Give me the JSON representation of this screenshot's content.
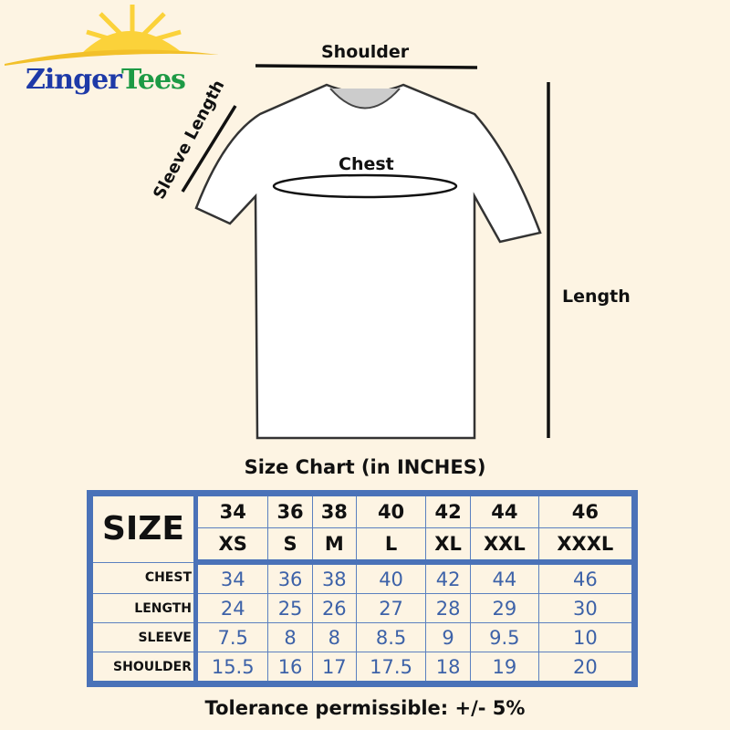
{
  "brand": {
    "name_part1": "Zinger",
    "name_part2": "Tees"
  },
  "diagram": {
    "shoulder": "Shoulder",
    "sleeve": "Sleeve Length",
    "chest": "Chest",
    "length": "Length"
  },
  "title": "Size Chart (in INCHES)",
  "table": {
    "size_label": "SIZE",
    "numbers": [
      "34",
      "36",
      "38",
      "40",
      "42",
      "44",
      "46"
    ],
    "letters": [
      "XS",
      "S",
      "M",
      "L",
      "XL",
      "XXL",
      "XXXL"
    ],
    "rows": [
      {
        "label": "CHEST",
        "values": [
          "34",
          "36",
          "38",
          "40",
          "42",
          "44",
          "46"
        ]
      },
      {
        "label": "LENGTH",
        "values": [
          "24",
          "25",
          "26",
          "27",
          "28",
          "29",
          "30"
        ]
      },
      {
        "label": "SLEEVE",
        "values": [
          "7.5",
          "8",
          "8",
          "8.5",
          "9",
          "9.5",
          "10"
        ]
      },
      {
        "label": "SHOULDER",
        "values": [
          "15.5",
          "16",
          "17",
          "17.5",
          "18",
          "19",
          "20"
        ]
      }
    ]
  },
  "footer": "Tolerance permissible: +/- 5%",
  "colors": {
    "background": "#fdf4e3",
    "table_border": "#4a72b8",
    "value_text": "#3d62a8",
    "brand_blue": "#1e3aa8",
    "brand_green": "#1d9a45"
  }
}
